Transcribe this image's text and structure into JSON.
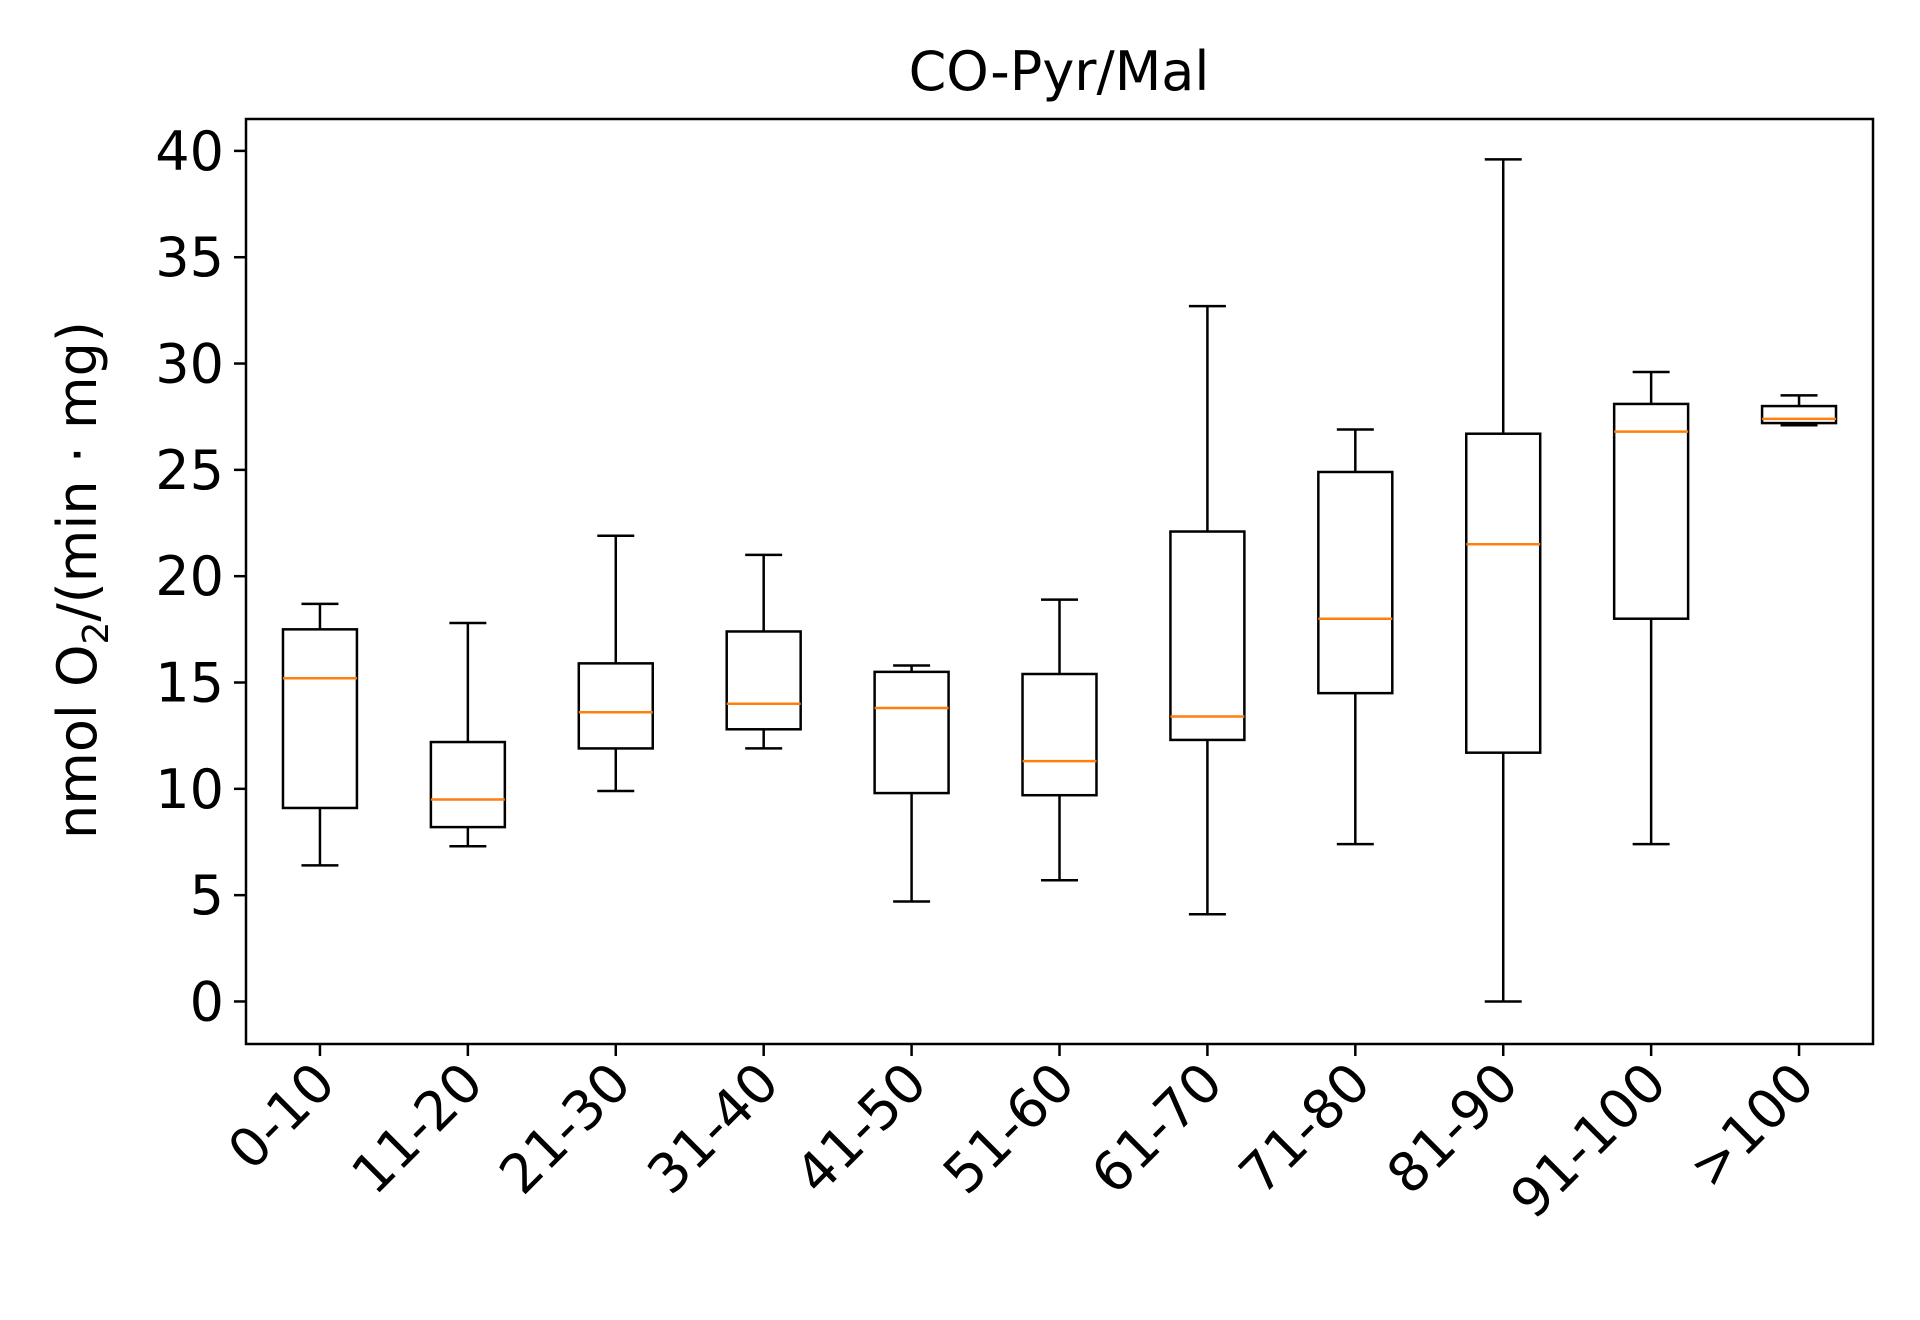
{
  "chart_data": {
    "type": "boxplot",
    "title": "CO-Pyr/Mal",
    "ylabel": {
      "main": "nmol O",
      "sub": "2",
      "rest": "/(min · mg)"
    },
    "xlabel": "",
    "ylim": [
      -2,
      41.5
    ],
    "yticks": [
      0,
      5,
      10,
      15,
      20,
      25,
      30,
      35,
      40
    ],
    "grid": false,
    "colors": {
      "box": "#000000",
      "median": "#ff7f0e"
    },
    "categories": [
      "0-10",
      "11-20",
      "21-30",
      "31-40",
      "41-50",
      "51-60",
      "61-70",
      "71-80",
      "81-90",
      "91-100",
      ">100"
    ],
    "boxes": [
      {
        "whislo": 6.4,
        "q1": 9.1,
        "med": 15.2,
        "q3": 17.5,
        "whishi": 18.7
      },
      {
        "whislo": 7.3,
        "q1": 8.2,
        "med": 9.5,
        "q3": 12.2,
        "whishi": 17.8
      },
      {
        "whislo": 9.9,
        "q1": 11.9,
        "med": 13.6,
        "q3": 15.9,
        "whishi": 21.9
      },
      {
        "whislo": 11.9,
        "q1": 12.8,
        "med": 14.0,
        "q3": 17.4,
        "whishi": 21.0
      },
      {
        "whislo": 4.7,
        "q1": 9.8,
        "med": 13.8,
        "q3": 15.5,
        "whishi": 15.8
      },
      {
        "whislo": 5.7,
        "q1": 9.7,
        "med": 11.3,
        "q3": 15.4,
        "whishi": 18.9
      },
      {
        "whislo": 4.1,
        "q1": 12.3,
        "med": 13.4,
        "q3": 22.1,
        "whishi": 32.7
      },
      {
        "whislo": 7.4,
        "q1": 14.5,
        "med": 18.0,
        "q3": 24.9,
        "whishi": 26.9
      },
      {
        "whislo": 0.0,
        "q1": 11.7,
        "med": 21.5,
        "q3": 26.7,
        "whishi": 39.6
      },
      {
        "whislo": 7.4,
        "q1": 18.0,
        "med": 26.8,
        "q3": 28.1,
        "whishi": 29.6
      },
      {
        "whislo": 27.1,
        "q1": 27.2,
        "med": 27.4,
        "q3": 28.0,
        "whishi": 28.5
      }
    ]
  }
}
